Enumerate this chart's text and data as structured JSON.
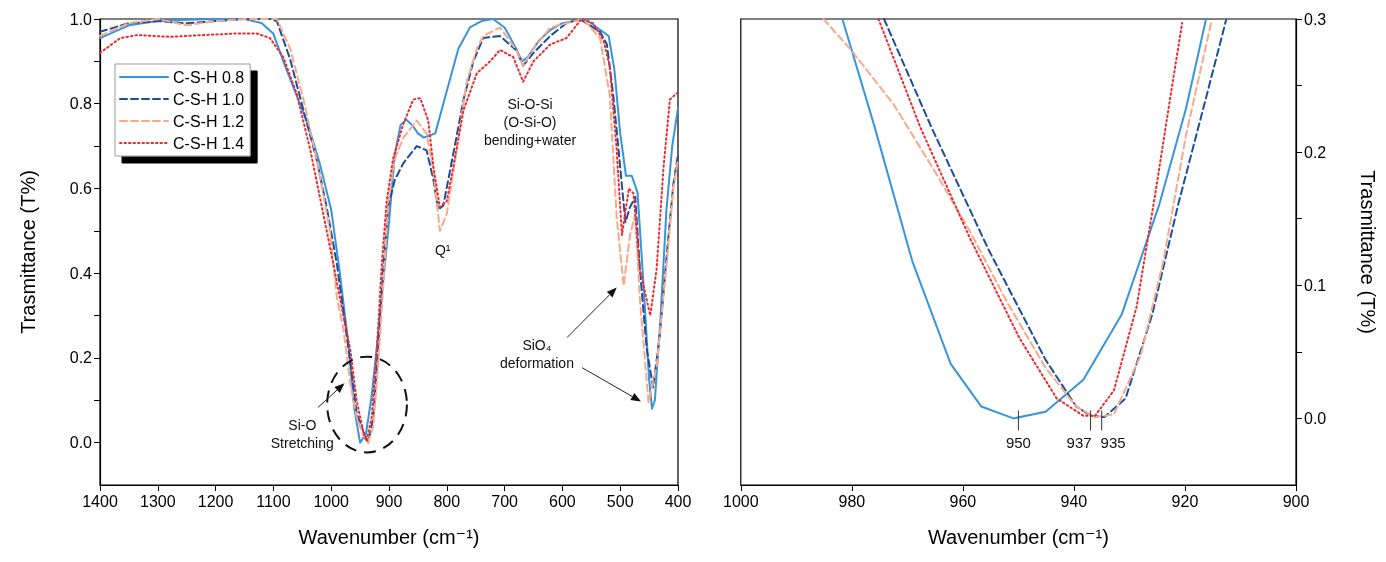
{
  "chart_data": [
    {
      "type": "line",
      "xlabel": "Wavenumber (cm⁻¹)",
      "ylabel": "Trasmittance (T%)",
      "xlim": [
        1400,
        400
      ],
      "ylim": [
        -0.1,
        1.0
      ],
      "xticks": [
        1400,
        1300,
        1200,
        1100,
        1000,
        900,
        800,
        700,
        600,
        500,
        400
      ],
      "yticks": [
        {
          "value": 0,
          "label": "0.0"
        },
        {
          "value": 0.1,
          "label": null
        },
        {
          "value": 0.2,
          "label": "0.2"
        },
        {
          "value": 0.3,
          "label": null
        },
        {
          "value": 0.4,
          "label": "0.4"
        },
        {
          "value": 0.5,
          "label": null
        },
        {
          "value": 0.6,
          "label": "0.6"
        },
        {
          "value": 0.7,
          "label": null
        },
        {
          "value": 0.8,
          "label": "0.8"
        },
        {
          "value": 0.9,
          "label": null
        },
        {
          "value": 1.0,
          "label": "1.0"
        }
      ],
      "grid": false,
      "legend": "top left",
      "series": [
        {
          "name": "C-S-H 0.8",
          "color": "#3a94dc",
          "line_style": "solid",
          "x": [
            1400,
            1350,
            1300,
            1250,
            1200,
            1150,
            1120,
            1100,
            1080,
            1060,
            1040,
            1020,
            1000,
            985,
            970,
            960,
            950,
            940,
            930,
            920,
            910,
            900,
            890,
            880,
            870,
            860,
            850,
            840,
            830,
            820,
            810,
            800,
            790,
            780,
            760,
            740,
            720,
            700,
            680,
            670,
            660,
            640,
            620,
            600,
            580,
            560,
            540,
            530,
            520,
            510,
            500,
            490,
            480,
            470,
            460,
            450,
            445,
            440,
            430,
            420,
            410,
            400
          ],
          "values": [
            0.955,
            0.985,
            0.995,
            0.998,
            1.0,
            1.0,
            0.99,
            0.965,
            0.89,
            0.82,
            0.75,
            0.66,
            0.55,
            0.4,
            0.23,
            0.08,
            0.0,
            0.02,
            0.11,
            0.24,
            0.38,
            0.52,
            0.68,
            0.75,
            0.762,
            0.75,
            0.73,
            0.72,
            0.725,
            0.73,
            0.78,
            0.83,
            0.88,
            0.93,
            0.98,
            0.995,
            1.0,
            0.98,
            0.93,
            0.9,
            0.91,
            0.95,
            0.975,
            0.99,
            0.995,
            1.0,
            0.98,
            0.97,
            0.96,
            0.88,
            0.73,
            0.63,
            0.63,
            0.59,
            0.38,
            0.15,
            0.08,
            0.1,
            0.3,
            0.55,
            0.7,
            0.79
          ]
        },
        {
          "name": "C-S-H 1.0",
          "color": "#1b4f9a",
          "line_style": "dashed",
          "x": [
            1400,
            1350,
            1300,
            1250,
            1200,
            1150,
            1106,
            1094,
            1071,
            1048,
            1025,
            1008,
            990,
            979,
            967,
            956,
            944,
            936,
            927,
            919,
            910,
            901,
            890,
            875,
            852,
            835,
            823,
            815,
            806,
            789,
            771,
            754,
            737,
            708,
            679,
            668,
            650,
            621,
            593,
            570,
            535,
            523,
            512,
            500,
            491,
            483,
            474,
            466,
            454,
            443,
            431,
            419,
            408,
            400
          ],
          "values": [
            0.97,
            0.99,
            0.995,
            0.99,
            0.995,
            1.0,
            1.0,
            0.995,
            0.905,
            0.785,
            0.667,
            0.557,
            0.42,
            0.31,
            0.19,
            0.07,
            0.025,
            0.0,
            0.06,
            0.22,
            0.41,
            0.56,
            0.62,
            0.66,
            0.7,
            0.69,
            0.62,
            0.55,
            0.56,
            0.68,
            0.81,
            0.9,
            0.955,
            0.96,
            0.925,
            0.89,
            0.92,
            0.96,
            0.99,
            1.0,
            0.97,
            0.94,
            0.82,
            0.65,
            0.52,
            0.556,
            0.58,
            0.41,
            0.22,
            0.13,
            0.26,
            0.45,
            0.61,
            0.68
          ]
        },
        {
          "name": "C-S-H 1.2",
          "color": "#f9a98a",
          "line_style": "dashed",
          "x": [
            1400,
            1350,
            1300,
            1250,
            1200,
            1150,
            1120,
            1094,
            1071,
            1048,
            1025,
            1002,
            990,
            979,
            967,
            956,
            944,
            936,
            927,
            919,
            910,
            901,
            890,
            875,
            852,
            835,
            823,
            812,
            800,
            783,
            766,
            748,
            737,
            708,
            679,
            668,
            650,
            621,
            593,
            564,
            535,
            518,
            506,
            494,
            483,
            474,
            466,
            451,
            437,
            419,
            408,
            400
          ],
          "values": [
            0.96,
            0.99,
            1.0,
            0.985,
            0.995,
            1.0,
            1.0,
            1.0,
            0.93,
            0.81,
            0.667,
            0.5,
            0.34,
            0.27,
            0.14,
            0.06,
            0.015,
            0.0,
            0.04,
            0.18,
            0.37,
            0.57,
            0.67,
            0.72,
            0.76,
            0.73,
            0.64,
            0.5,
            0.54,
            0.69,
            0.85,
            0.93,
            0.96,
            0.98,
            0.925,
            0.89,
            0.93,
            0.98,
            0.99,
            1.0,
            0.955,
            0.82,
            0.53,
            0.37,
            0.49,
            0.54,
            0.34,
            0.095,
            0.18,
            0.43,
            0.6,
            0.67
          ]
        },
        {
          "name": "C-S-H 1.4",
          "color": "#ee2a2f",
          "line_style": "dotted",
          "x": [
            1400,
            1365,
            1336,
            1278,
            1221,
            1163,
            1129,
            1106,
            1083,
            1060,
            1036,
            1013,
            996,
            979,
            967,
            956,
            944,
            939,
            930,
            921,
            913,
            904,
            893,
            875,
            858,
            846,
            832,
            823,
            812,
            800,
            789,
            771,
            748,
            725,
            708,
            685,
            668,
            650,
            621,
            593,
            567,
            547,
            529,
            518,
            506,
            497,
            485,
            477,
            466,
            448,
            437,
            425,
            414,
            402
          ],
          "values": [
            0.92,
            0.955,
            0.962,
            0.958,
            0.962,
            0.966,
            0.966,
            0.955,
            0.91,
            0.825,
            0.69,
            0.535,
            0.42,
            0.3,
            0.22,
            0.1,
            0.023,
            0.003,
            0.06,
            0.22,
            0.41,
            0.57,
            0.67,
            0.753,
            0.81,
            0.813,
            0.76,
            0.65,
            0.556,
            0.57,
            0.65,
            0.785,
            0.872,
            0.9,
            0.927,
            0.91,
            0.852,
            0.9,
            0.94,
            0.955,
            1.0,
            0.99,
            0.95,
            0.888,
            0.69,
            0.49,
            0.6,
            0.588,
            0.41,
            0.3,
            0.41,
            0.65,
            0.81,
            0.825
          ]
        }
      ],
      "annotations": [
        "Si-O\nStretching",
        "Q¹",
        "Si-O-Si\n(O-Si-O)\nbending+water",
        "SiO₄\ndeformation"
      ]
    },
    {
      "type": "line",
      "xlabel": "Wavenumber (cm⁻¹)",
      "ylabel": "Trasmittance (T%)",
      "xlim": [
        1000,
        900
      ],
      "ylim": [
        -0.05,
        0.3
      ],
      "xticks": [
        1000,
        980,
        960,
        940,
        920,
        900
      ],
      "yticks": [
        {
          "value": 0,
          "label": "0.0"
        },
        {
          "value": 0.05,
          "label": null
        },
        {
          "value": 0.1,
          "label": "0.1"
        },
        {
          "value": 0.15,
          "label": null
        },
        {
          "value": 0.2,
          "label": "0.2"
        },
        {
          "value": 0.25,
          "label": null
        },
        {
          "value": 0.3,
          "label": "0.3"
        }
      ],
      "grid": false,
      "series": [
        {
          "color": "#3a94dc",
          "line_style": "solid",
          "x": [
            981.7,
            975.9,
            969.1,
            962.2,
            956.7,
            950.9,
            945.1,
            938.3,
            931.4,
            924.6,
            919.8,
            916.2
          ],
          "values": [
            0.3,
            0.219,
            0.118,
            0.041,
            0.009,
            0.0,
            0.005,
            0.029,
            0.078,
            0.161,
            0.233,
            0.3
          ]
        },
        {
          "color": "#1b4f9a",
          "line_style": "dashed",
          "x": [
            974.2,
            965.7,
            955.4,
            945.1,
            939.6,
            936.9,
            934.5,
            930.7,
            925.9,
            921.2,
            917,
            912.6
          ],
          "values": [
            0.3,
            0.219,
            0.127,
            0.044,
            0.009,
            0.002,
            0.001,
            0.015,
            0.078,
            0.161,
            0.228,
            0.299
          ]
        },
        {
          "color": "#f9a98a",
          "line_style": "dashed",
          "x": [
            985.1,
            980,
            972.5,
            965.7,
            958.8,
            952,
            945.1,
            939.6,
            936.2,
            932.8,
            928,
            923.9,
            919.8,
            915.3
          ],
          "values": [
            0.3,
            0.276,
            0.236,
            0.19,
            0.141,
            0.087,
            0.038,
            0.009,
            0.001,
            0.003,
            0.047,
            0.118,
            0.213,
            0.297
          ]
        },
        {
          "color": "#ee2a2f",
          "line_style": "dotted",
          "x": [
            975.2,
            967.7,
            958.8,
            949.9,
            943.1,
            938.3,
            936.2,
            932.8,
            928.7,
            925.3,
            922.5,
            920.5
          ],
          "values": [
            0.3,
            0.219,
            0.136,
            0.061,
            0.015,
            0.002,
            0.002,
            0.021,
            0.084,
            0.17,
            0.245,
            0.297
          ]
        }
      ],
      "annotations": [
        {
          "text": "950",
          "x": 950,
          "y": 0
        },
        {
          "text": "937",
          "x": 937,
          "y": 0
        },
        {
          "text": "935",
          "x": 935,
          "y": 0
        }
      ]
    }
  ]
}
